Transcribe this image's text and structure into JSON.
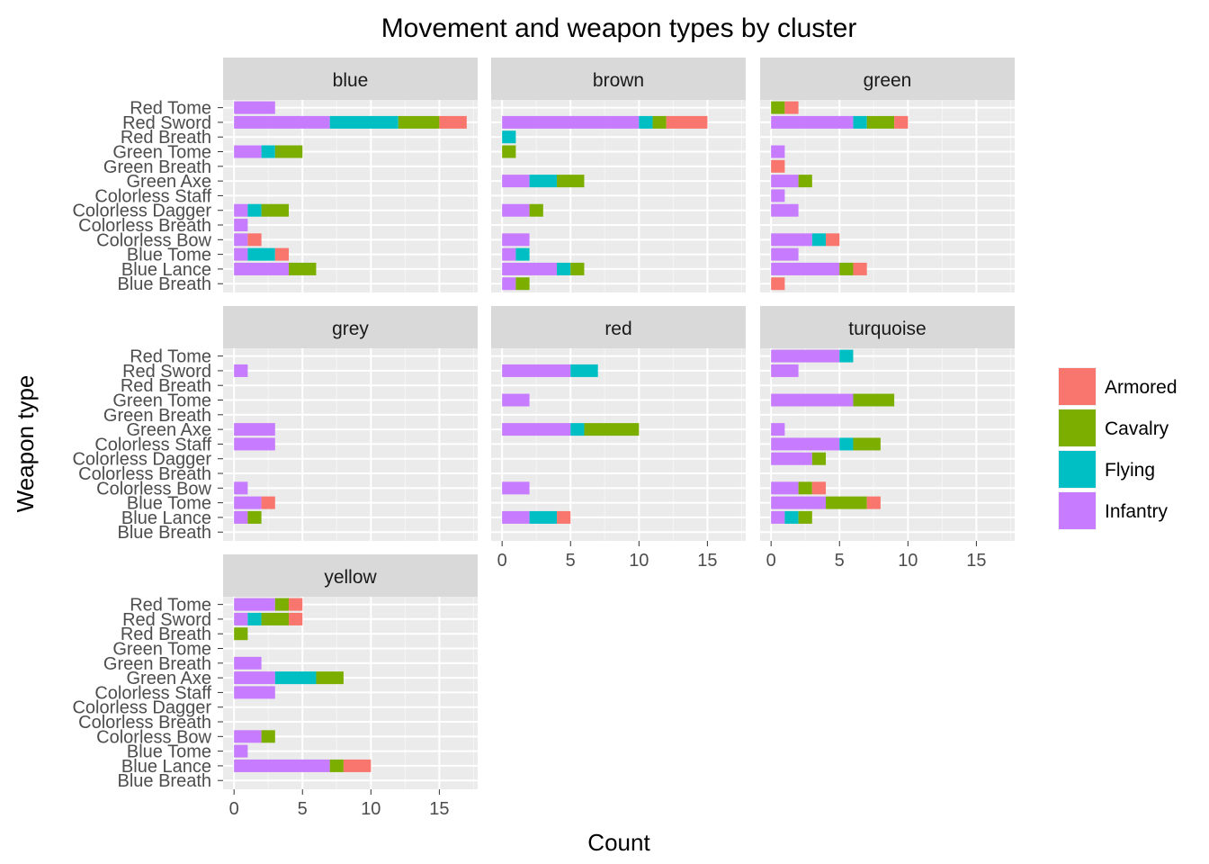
{
  "chart_data": {
    "type": "bar",
    "orientation": "horizontal",
    "stacked": true,
    "title": "Movement and weapon types by cluster",
    "xlabel": "Count",
    "ylabel": "Weapon type",
    "xlim": [
      -0.8,
      17.8
    ],
    "x_ticks": [
      0,
      5,
      10,
      15
    ],
    "grid": true,
    "legend_position": "right",
    "categories": [
      "Red Tome",
      "Red Sword",
      "Red Breath",
      "Green Tome",
      "Green Breath",
      "Green Axe",
      "Colorless Staff",
      "Colorless Dagger",
      "Colorless Breath",
      "Colorless Bow",
      "Blue Tome",
      "Blue Lance",
      "Blue Breath"
    ],
    "series_order": [
      "Infantry",
      "Flying",
      "Cavalry",
      "Armored"
    ],
    "legend": [
      {
        "name": "Armored",
        "color": "#F8766D"
      },
      {
        "name": "Cavalry",
        "color": "#7CAE00"
      },
      {
        "name": "Flying",
        "color": "#00BFC4"
      },
      {
        "name": "Infantry",
        "color": "#C77CFF"
      }
    ],
    "facets": [
      {
        "name": "blue",
        "data": {
          "Red Tome": {
            "Infantry": 3
          },
          "Red Sword": {
            "Infantry": 7,
            "Flying": 5,
            "Cavalry": 3,
            "Armored": 2
          },
          "Green Tome": {
            "Infantry": 2,
            "Flying": 1,
            "Cavalry": 2
          },
          "Colorless Dagger": {
            "Infantry": 1,
            "Flying": 1,
            "Cavalry": 2
          },
          "Colorless Breath": {
            "Infantry": 1
          },
          "Colorless Bow": {
            "Infantry": 1,
            "Armored": 1
          },
          "Blue Tome": {
            "Infantry": 1,
            "Flying": 2,
            "Armored": 1
          },
          "Blue Lance": {
            "Infantry": 4,
            "Cavalry": 2
          }
        }
      },
      {
        "name": "brown",
        "data": {
          "Red Sword": {
            "Infantry": 10,
            "Flying": 1,
            "Cavalry": 1,
            "Armored": 3
          },
          "Red Breath": {
            "Flying": 1
          },
          "Green Tome": {
            "Cavalry": 1
          },
          "Green Axe": {
            "Infantry": 2,
            "Flying": 2,
            "Cavalry": 2
          },
          "Colorless Dagger": {
            "Infantry": 2,
            "Cavalry": 1
          },
          "Colorless Bow": {
            "Infantry": 2
          },
          "Blue Tome": {
            "Infantry": 1,
            "Flying": 1
          },
          "Blue Lance": {
            "Infantry": 4,
            "Flying": 1,
            "Cavalry": 1
          },
          "Blue Breath": {
            "Infantry": 1,
            "Cavalry": 1
          }
        }
      },
      {
        "name": "green",
        "data": {
          "Red Tome": {
            "Cavalry": 1,
            "Armored": 1
          },
          "Red Sword": {
            "Infantry": 6,
            "Flying": 1,
            "Cavalry": 2,
            "Armored": 1
          },
          "Green Tome": {
            "Infantry": 1
          },
          "Green Breath": {
            "Armored": 1
          },
          "Green Axe": {
            "Infantry": 2,
            "Cavalry": 1
          },
          "Colorless Staff": {
            "Infantry": 1
          },
          "Colorless Dagger": {
            "Infantry": 2
          },
          "Colorless Bow": {
            "Infantry": 3,
            "Flying": 1,
            "Armored": 1
          },
          "Blue Tome": {
            "Infantry": 2
          },
          "Blue Lance": {
            "Infantry": 5,
            "Cavalry": 1,
            "Armored": 1
          },
          "Blue Breath": {
            "Armored": 1
          }
        }
      },
      {
        "name": "grey",
        "data": {
          "Red Sword": {
            "Infantry": 1
          },
          "Green Axe": {
            "Infantry": 3
          },
          "Colorless Staff": {
            "Infantry": 3
          },
          "Colorless Bow": {
            "Infantry": 1
          },
          "Blue Tome": {
            "Infantry": 2,
            "Armored": 1
          },
          "Blue Lance": {
            "Infantry": 1,
            "Cavalry": 1
          }
        }
      },
      {
        "name": "red",
        "data": {
          "Red Sword": {
            "Infantry": 5,
            "Flying": 2
          },
          "Green Tome": {
            "Infantry": 2
          },
          "Green Axe": {
            "Infantry": 5,
            "Flying": 1,
            "Cavalry": 4
          },
          "Colorless Bow": {
            "Infantry": 2
          },
          "Blue Lance": {
            "Infantry": 2,
            "Flying": 2,
            "Armored": 1
          }
        }
      },
      {
        "name": "turquoise",
        "data": {
          "Red Tome": {
            "Infantry": 5,
            "Flying": 1
          },
          "Red Sword": {
            "Infantry": 2
          },
          "Green Tome": {
            "Infantry": 6,
            "Cavalry": 3
          },
          "Green Axe": {
            "Infantry": 1
          },
          "Colorless Staff": {
            "Infantry": 5,
            "Flying": 1,
            "Cavalry": 2
          },
          "Colorless Dagger": {
            "Infantry": 3,
            "Cavalry": 1
          },
          "Colorless Bow": {
            "Infantry": 2,
            "Cavalry": 1,
            "Armored": 1
          },
          "Blue Tome": {
            "Infantry": 4,
            "Cavalry": 3,
            "Armored": 1
          },
          "Blue Lance": {
            "Infantry": 1,
            "Flying": 1,
            "Cavalry": 1
          }
        }
      },
      {
        "name": "yellow",
        "data": {
          "Red Tome": {
            "Infantry": 3,
            "Cavalry": 1,
            "Armored": 1
          },
          "Red Sword": {
            "Infantry": 1,
            "Flying": 1,
            "Cavalry": 2,
            "Armored": 1
          },
          "Red Breath": {
            "Cavalry": 1
          },
          "Green Breath": {
            "Infantry": 2
          },
          "Green Axe": {
            "Infantry": 3,
            "Flying": 3,
            "Cavalry": 2
          },
          "Colorless Staff": {
            "Infantry": 3
          },
          "Colorless Bow": {
            "Infantry": 2,
            "Cavalry": 1
          },
          "Blue Tome": {
            "Infantry": 1
          },
          "Blue Lance": {
            "Infantry": 7,
            "Cavalry": 1,
            "Armored": 2
          }
        }
      }
    ]
  }
}
